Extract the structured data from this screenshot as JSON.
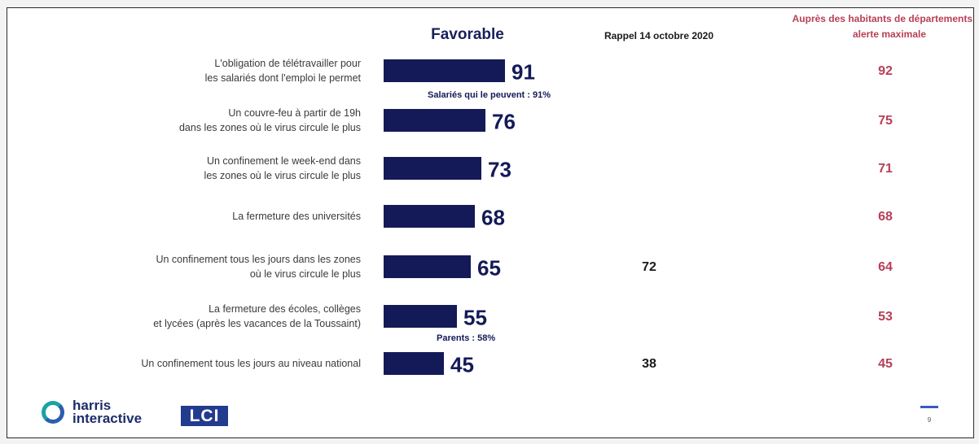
{
  "chart_data": {
    "type": "bar",
    "orientation": "horizontal",
    "column_headers": {
      "favorable": "Favorable",
      "rappel": "Rappel 14 octobre 2020",
      "alerte": "Auprès des habitants de départements en alerte maximale"
    },
    "categories": [
      "L'obligation de télétravailler pour les salariés dont l'emploi le permet",
      "Un couvre-feu à partir de 19h dans les zones où le virus circule le plus",
      "Un confinement le week-end dans les zones où le virus circule le plus",
      "La fermeture des universités",
      "Un confinement tous les jours dans les zones où le virus circule le plus",
      "La fermeture des écoles, collèges et lycées (après les vacances de la Toussaint)",
      "Un confinement tous les jours au niveau national"
    ],
    "label_lines": [
      [
        "L'obligation de télétravailler pour",
        "les salariés dont l'emploi le permet"
      ],
      [
        "Un couvre-feu à partir de 19h",
        "dans les zones où le virus circule le plus"
      ],
      [
        "Un confinement le week-end dans",
        "les zones où le virus circule le plus"
      ],
      [
        "La fermeture des universités"
      ],
      [
        "Un confinement tous les jours dans les zones",
        "où le virus circule le plus"
      ],
      [
        "La fermeture des écoles, collèges",
        "et lycées (après les vacances de la Toussaint)"
      ],
      [
        "Un confinement tous les jours au niveau national"
      ]
    ],
    "series": [
      {
        "name": "Favorable",
        "values": [
          91,
          76,
          73,
          68,
          65,
          55,
          45
        ]
      },
      {
        "name": "Rappel 14 octobre 2020",
        "values": [
          null,
          null,
          null,
          null,
          72,
          null,
          38
        ]
      },
      {
        "name": "Auprès des habitants de départements en alerte maximale",
        "values": [
          92,
          75,
          71,
          68,
          64,
          53,
          45
        ]
      }
    ],
    "annotations": [
      {
        "row": 0,
        "text": "Salariés qui le peuvent : 91%"
      },
      {
        "row": 5,
        "text": "Parents : 58%"
      }
    ],
    "colors": {
      "bar": "#141a57",
      "alert": "#b83f56",
      "rappel": "#1a1a1a"
    }
  },
  "branding": {
    "logo_line1": "harris",
    "logo_line2": "interactive",
    "logo_lci": "LCI",
    "page_number": "9"
  }
}
